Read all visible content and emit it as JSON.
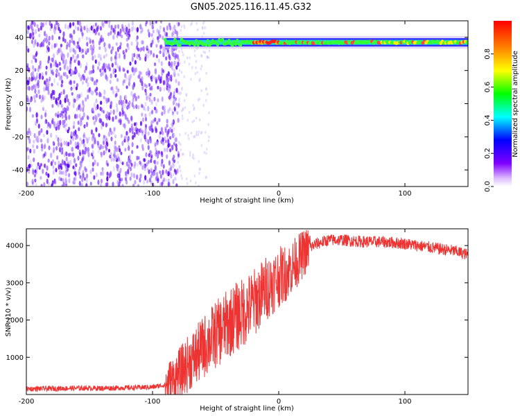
{
  "figure": {
    "title": "GN05.2025.116.11.45.G32"
  },
  "colors": {
    "line": "#ee3333",
    "ridge_low": "#22ddcc",
    "ridge_mid": "#33ff33",
    "ridge_high": "#ff2222",
    "noise": "#7733ff",
    "frame": "#000000"
  },
  "chart_data": [
    {
      "type": "heatmap",
      "title": "",
      "xlabel": "Height of straight line (km)",
      "ylabel": "Frequency (Hz)",
      "xlim": [
        -200,
        150
      ],
      "ylim": [
        -50,
        50
      ],
      "x_ticks": [
        -200,
        -100,
        0,
        100
      ],
      "y_ticks": [
        -40,
        -20,
        0,
        20,
        40
      ],
      "ridge": {
        "frequency_hz": 37,
        "x_start": -90,
        "x_end": 150
      },
      "noise_region": {
        "x_start": -200,
        "x_end": -85
      },
      "colorbar": {
        "label": "Normalized spectral amplitude",
        "range": [
          0.0,
          1.0
        ],
        "ticks": [
          0.0,
          0.2,
          0.4,
          0.6,
          0.8
        ],
        "tick_labels": [
          "0.0",
          "0.2",
          "0.4",
          "0.6",
          "0.8"
        ],
        "stops": [
          "#ffffff",
          "#8000ff",
          "#0000ff",
          "#00ffff",
          "#00ff00",
          "#ffff00",
          "#ff8000",
          "#ff0000"
        ]
      },
      "grid": false
    },
    {
      "type": "line",
      "title": "",
      "xlabel": "Height of straight line (km)",
      "ylabel": "SNR (10 * v/v)",
      "xlim": [
        -200,
        150
      ],
      "ylim": [
        0,
        4450
      ],
      "x_ticks": [
        -200,
        -100,
        0,
        100
      ],
      "y_ticks": [
        1000,
        2000,
        3000,
        4000
      ],
      "grid": false,
      "series": [
        {
          "x": [
            -200,
            -180,
            -160,
            -140,
            -120,
            -100,
            -90,
            -85,
            -80,
            -75,
            -70,
            -65,
            -60,
            -55,
            -50,
            -45,
            -40,
            -35,
            -30,
            -25,
            -20,
            -15,
            -10,
            -5,
            0,
            5,
            10,
            15,
            20,
            25,
            30,
            35,
            40,
            50,
            60,
            70,
            80,
            90,
            100,
            110,
            120,
            130,
            140,
            150
          ],
          "y": [
            150,
            160,
            170,
            170,
            180,
            200,
            260,
            350,
            500,
            700,
            900,
            1050,
            1250,
            1450,
            1600,
            1750,
            1900,
            2050,
            2150,
            2300,
            2450,
            2650,
            2850,
            3000,
            3150,
            3250,
            3400,
            3600,
            3800,
            3950,
            4050,
            4100,
            4150,
            4150,
            4120,
            4100,
            4100,
            4080,
            4050,
            4000,
            3950,
            3900,
            3850,
            3750
          ]
        }
      ]
    }
  ]
}
